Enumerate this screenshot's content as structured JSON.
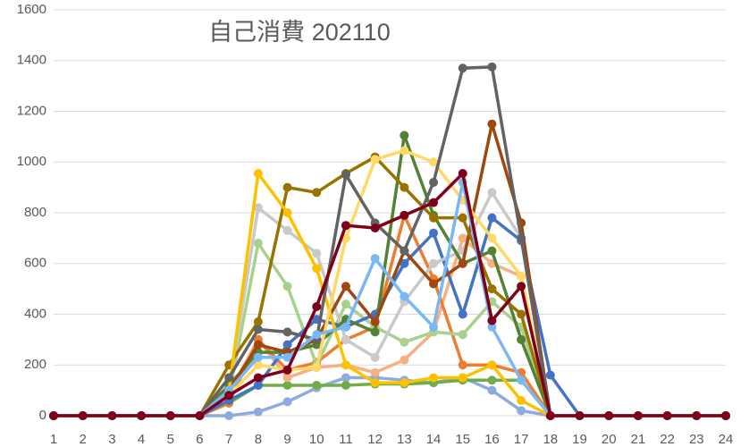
{
  "chart_data": {
    "type": "line",
    "title": "自己消費 202110",
    "x": [
      1,
      2,
      3,
      4,
      5,
      6,
      7,
      8,
      9,
      10,
      11,
      12,
      13,
      14,
      15,
      16,
      17,
      18,
      19,
      20,
      21,
      22,
      23,
      24
    ],
    "xlim": [
      1,
      24
    ],
    "xticks": [
      1,
      2,
      3,
      4,
      5,
      6,
      7,
      8,
      9,
      10,
      11,
      12,
      13,
      14,
      15,
      16,
      17,
      18,
      19,
      20,
      21,
      22,
      23,
      24
    ],
    "ylim": [
      0,
      1600
    ],
    "yticks": [
      0,
      200,
      400,
      600,
      800,
      1000,
      1200,
      1400,
      1600
    ],
    "grid": true,
    "series": [
      {
        "color": "#8faadc",
        "values": [
          0,
          0,
          0,
          0,
          0,
          0,
          0,
          15,
          55,
          110,
          150,
          150,
          140,
          130,
          150,
          100,
          20,
          0,
          0,
          0,
          0,
          0,
          0,
          0
        ]
      },
      {
        "color": "#70ad47",
        "values": [
          0,
          0,
          0,
          0,
          0,
          0,
          50,
          120,
          120,
          120,
          120,
          125,
          125,
          130,
          140,
          140,
          140,
          0,
          0,
          0,
          0,
          0,
          0,
          0
        ]
      },
      {
        "color": "#f4b183",
        "values": [
          0,
          0,
          0,
          0,
          0,
          0,
          90,
          300,
          150,
          190,
          200,
          170,
          220,
          330,
          700,
          600,
          550,
          0,
          0,
          0,
          0,
          0,
          0,
          0
        ]
      },
      {
        "color": "#ed7d31",
        "values": [
          0,
          0,
          0,
          0,
          0,
          0,
          50,
          300,
          180,
          210,
          300,
          350,
          790,
          540,
          200,
          200,
          170,
          0,
          0,
          0,
          0,
          0,
          0,
          0
        ]
      },
      {
        "color": "#a9d18e",
        "values": [
          0,
          0,
          0,
          0,
          0,
          0,
          80,
          680,
          510,
          200,
          440,
          350,
          290,
          330,
          320,
          450,
          350,
          0,
          0,
          0,
          0,
          0,
          0,
          0
        ]
      },
      {
        "color": "#4472c4",
        "values": [
          0,
          0,
          0,
          0,
          0,
          0,
          60,
          120,
          280,
          380,
          350,
          400,
          600,
          720,
          400,
          780,
          690,
          160,
          0,
          0,
          0,
          0,
          0,
          0
        ]
      },
      {
        "color": "#c9c9c9",
        "values": [
          0,
          0,
          0,
          0,
          0,
          0,
          100,
          820,
          730,
          640,
          300,
          230,
          450,
          600,
          650,
          880,
          700,
          0,
          0,
          0,
          0,
          0,
          0,
          0
        ]
      },
      {
        "color": "#548235",
        "values": [
          0,
          0,
          0,
          0,
          0,
          0,
          120,
          250,
          250,
          280,
          380,
          330,
          1105,
          790,
          600,
          650,
          300,
          0,
          0,
          0,
          0,
          0,
          0,
          0
        ]
      },
      {
        "color": "#9e480e",
        "values": [
          0,
          0,
          0,
          0,
          0,
          0,
          100,
          280,
          250,
          300,
          510,
          370,
          650,
          520,
          600,
          1150,
          760,
          0,
          0,
          0,
          0,
          0,
          0,
          0
        ]
      },
      {
        "color": "#997300",
        "values": [
          0,
          0,
          0,
          0,
          0,
          0,
          200,
          370,
          900,
          880,
          955,
          1020,
          900,
          780,
          780,
          500,
          400,
          0,
          0,
          0,
          0,
          0,
          0,
          0
        ]
      },
      {
        "color": "#ffc000",
        "values": [
          0,
          0,
          0,
          0,
          0,
          0,
          100,
          955,
          800,
          580,
          200,
          130,
          130,
          150,
          150,
          200,
          60,
          0,
          0,
          0,
          0,
          0,
          0,
          0
        ]
      },
      {
        "color": "#ffd966",
        "values": [
          0,
          0,
          0,
          0,
          0,
          0,
          80,
          200,
          180,
          190,
          700,
          1010,
          1045,
          1000,
          850,
          700,
          550,
          0,
          0,
          0,
          0,
          0,
          0,
          0
        ]
      },
      {
        "color": "#636363",
        "values": [
          0,
          0,
          0,
          0,
          0,
          0,
          150,
          340,
          330,
          300,
          950,
          760,
          650,
          920,
          1370,
          1375,
          700,
          0,
          0,
          0,
          0,
          0,
          0,
          0
        ]
      },
      {
        "color": "#7ab8f5",
        "values": [
          0,
          0,
          0,
          0,
          0,
          0,
          100,
          230,
          230,
          320,
          350,
          620,
          470,
          350,
          920,
          350,
          140,
          0,
          0,
          0,
          0,
          0,
          0,
          0
        ]
      },
      {
        "color": "#7f0019",
        "values": [
          0,
          0,
          0,
          0,
          0,
          0,
          80,
          150,
          180,
          430,
          750,
          740,
          790,
          840,
          955,
          375,
          510,
          0,
          0,
          0,
          0,
          0,
          0,
          0
        ]
      }
    ]
  }
}
